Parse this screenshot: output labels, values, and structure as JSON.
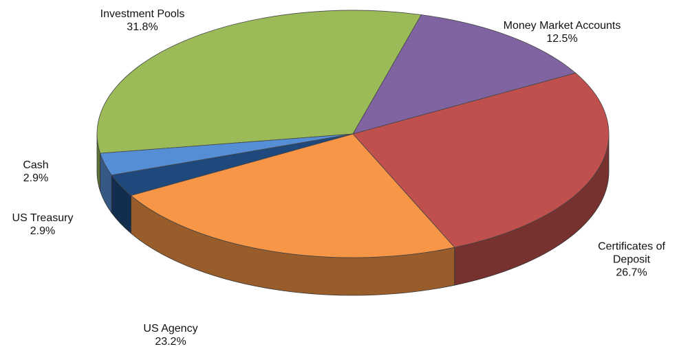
{
  "chart_data": {
    "type": "pie3d",
    "categories": [
      "Investment Pools",
      "Money Market Accounts",
      "Certificates of Deposit",
      "US Agency",
      "US Treasury",
      "Cash"
    ],
    "values": [
      31.8,
      12.5,
      26.7,
      23.2,
      2.9,
      2.9
    ],
    "value_labels": [
      "31.8%",
      "12.5%",
      "26.7%",
      "23.2%",
      "2.9%",
      "2.9%"
    ],
    "colors": [
      "#9bbb59",
      "#8064a2",
      "#c0504d",
      "#f79646",
      "#1f497d",
      "#558ed5"
    ]
  }
}
